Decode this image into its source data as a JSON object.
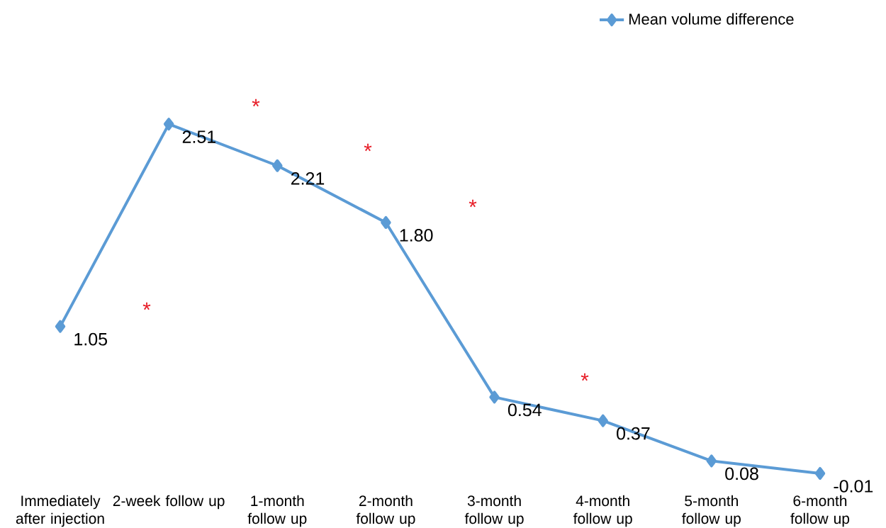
{
  "chart_data": {
    "type": "line",
    "categories": [
      "Immediately after injection",
      "2-week follow up",
      "1-month follow up",
      "2-month follow up",
      "3-month follow up",
      "4-month follow up",
      "5-month follow up",
      "6-month follow up"
    ],
    "series": [
      {
        "name": "Mean volume difference",
        "color": "#5b9bd5",
        "values": [
          1.05,
          2.51,
          2.21,
          1.8,
          0.54,
          0.37,
          0.08,
          -0.01
        ],
        "value_labels": [
          "1.05",
          "2.51",
          "2.21",
          "1.80",
          "0.54",
          "0.37",
          "0.08",
          "-0.01"
        ]
      }
    ],
    "annotations": [
      "*",
      "*",
      "*",
      "*",
      "*"
    ],
    "legend": "top right",
    "marker": "diamond",
    "line_style": "solid",
    "grid": false
  }
}
